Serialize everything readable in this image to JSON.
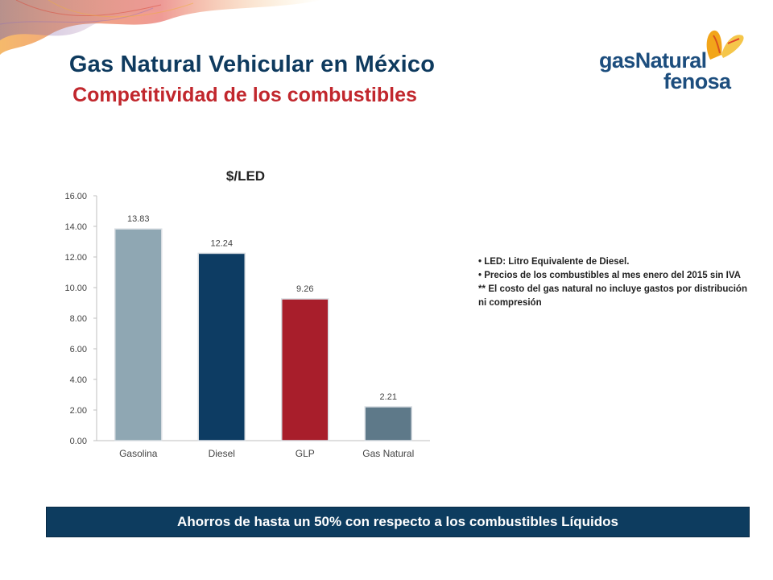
{
  "header": {
    "title": "Gas Natural Vehicular en México",
    "subtitle": "Competitividad de los combustibles"
  },
  "logo": {
    "word1": "gasNatural",
    "word2": "fenosa",
    "icon": "butterfly-icon"
  },
  "chart_data": {
    "type": "bar",
    "title": "$/LED",
    "xlabel": "",
    "ylabel": "",
    "categories": [
      "Gasolina",
      "Diesel",
      "GLP",
      "Gas Natural"
    ],
    "values": [
      13.83,
      12.24,
      9.26,
      2.21
    ],
    "data_labels": [
      "13.83",
      "12.24",
      "9.26",
      "2.21"
    ],
    "bar_colors": [
      "#8fa7b3",
      "#0d3c63",
      "#a81e2b",
      "#5e7989"
    ],
    "ylim": [
      0,
      16
    ],
    "yticks": [
      0,
      2,
      4,
      6,
      8,
      10,
      12,
      14,
      16
    ],
    "ytick_labels": [
      "0.00",
      "2.00",
      "4.00",
      "6.00",
      "8.00",
      "10.00",
      "12.00",
      "14.00",
      "16.00"
    ],
    "grid": false,
    "legend": false
  },
  "notes": {
    "line1": "• LED: Litro Equivalente de Diesel.",
    "line2": "• Precios de los combustibles al mes enero del 2015 sin IVA",
    "line3": "** El costo del gas natural no incluye gastos por distribución ni compresión"
  },
  "banner": {
    "text": "Ahorros de hasta un 50% con respecto a los combustibles Líquidos"
  },
  "colors": {
    "title": "#0e3a5e",
    "subtitle": "#c1272d",
    "banner_bg": "#0d3c5f"
  }
}
